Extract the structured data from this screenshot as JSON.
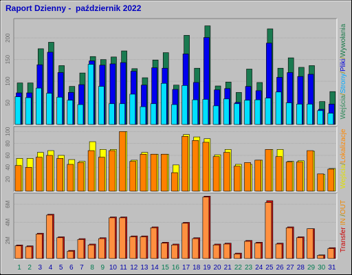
{
  "title": "Raport Dzienny -  październik 2022",
  "legend": {
    "top": [
      {
        "text": "Wejścia",
        "color": "#2f8a5a"
      },
      {
        "text": "/",
        "color": "#888800"
      },
      {
        "text": "Strony",
        "color": "#00aaff"
      },
      {
        "text": "/",
        "color": "#888800"
      },
      {
        "text": "Pliki",
        "color": "#0000dd"
      },
      {
        "text": "/",
        "color": "#888800"
      },
      {
        "text": "Wywołania",
        "color": "#1a7a4a"
      }
    ],
    "middle": [
      {
        "text": "Wejścia",
        "color": "#e0e000"
      },
      {
        "text": "/",
        "color": "#888800"
      },
      {
        "text": "Lokalizacje",
        "color": "#ff8800"
      }
    ],
    "bottom": [
      {
        "text": "Transfer",
        "color": "#cc0000"
      },
      {
        "text": " IN ",
        "color": "#ee8800"
      },
      {
        "text": "/",
        "color": "#888800"
      },
      {
        "text": "OUT",
        "color": "#ee8800"
      }
    ]
  },
  "colors": {
    "background": "#c0c0c0",
    "hits": "#1a7a50",
    "files": "#0000ee",
    "pages": "#00e0ff",
    "visits": "#ffff00",
    "sites": "#ff8000",
    "kbin": "#d01010",
    "kbout": "#ff9040",
    "weekend_label": "#007a50",
    "weekday_label": "#0000aa"
  },
  "chart_data": [
    {
      "type": "bar",
      "panel": "top",
      "yticks": [
        "50",
        "100",
        "150",
        "200"
      ],
      "ylim": [
        0,
        240
      ],
      "categories": [
        "1",
        "2",
        "3",
        "4",
        "5",
        "6",
        "7",
        "8",
        "9",
        "10",
        "11",
        "12",
        "13",
        "14",
        "15",
        "16",
        "17",
        "18",
        "19",
        "20",
        "21",
        "22",
        "23",
        "24",
        "25",
        "26",
        "27",
        "28",
        "29",
        "30",
        "31"
      ],
      "series": [
        {
          "name": "Wywołania",
          "values": [
            96,
            96,
            175,
            190,
            136,
            88,
            119,
            157,
            150,
            156,
            170,
            129,
            108,
            149,
            166,
            91,
            206,
            130,
            228,
            89,
            98,
            74,
            128,
            97,
            221,
            130,
            154,
            132,
            136,
            53,
            76
          ]
        },
        {
          "name": "Pliki",
          "values": [
            73,
            73,
            138,
            167,
            120,
            74,
            92,
            147,
            137,
            140,
            143,
            123,
            91,
            131,
            130,
            81,
            163,
            97,
            201,
            80,
            83,
            51,
            88,
            78,
            188,
            109,
            120,
            111,
            116,
            35,
            47
          ]
        },
        {
          "name": "Strony",
          "values": [
            64,
            62,
            84,
            72,
            63,
            56,
            46,
            139,
            88,
            48,
            48,
            70,
            41,
            48,
            95,
            46,
            90,
            57,
            58,
            43,
            59,
            48,
            56,
            57,
            61,
            75,
            50,
            47,
            47,
            32,
            26
          ]
        }
      ]
    },
    {
      "type": "bar",
      "panel": "middle",
      "yticks": [
        "20",
        "40",
        "60",
        "80",
        "100"
      ],
      "ylim": [
        0,
        105
      ],
      "categories": [
        "1",
        "2",
        "3",
        "4",
        "5",
        "6",
        "7",
        "8",
        "9",
        "10",
        "11",
        "12",
        "13",
        "14",
        "15",
        "16",
        "17",
        "18",
        "19",
        "20",
        "21",
        "22",
        "23",
        "24",
        "25",
        "26",
        "27",
        "28",
        "29",
        "30",
        "31"
      ],
      "series": [
        {
          "name": "Wejścia",
          "values": [
            55,
            55,
            65,
            68,
            60,
            53,
            50,
            83,
            70,
            70,
            100,
            52,
            65,
            62,
            62,
            44,
            95,
            91,
            88,
            61,
            70,
            45,
            45,
            52,
            70,
            70,
            50,
            51,
            67,
            28,
            38
          ]
        },
        {
          "name": "Lokalizacje",
          "values": [
            43,
            40,
            57,
            60,
            55,
            45,
            48,
            68,
            57,
            68,
            100,
            50,
            62,
            62,
            62,
            31,
            92,
            85,
            82,
            58,
            65,
            42,
            48,
            52,
            70,
            58,
            49,
            49,
            68,
            29,
            37
          ]
        }
      ]
    },
    {
      "type": "bar",
      "panel": "bottom",
      "yticks": [
        "2M",
        "4M",
        "6M"
      ],
      "ylim": [
        0,
        7
      ],
      "categories": [
        "1",
        "2",
        "3",
        "4",
        "5",
        "6",
        "7",
        "8",
        "9",
        "10",
        "11",
        "12",
        "13",
        "14",
        "15",
        "16",
        "17",
        "18",
        "19",
        "20",
        "21",
        "22",
        "23",
        "24",
        "25",
        "26",
        "27",
        "28",
        "29",
        "30",
        "31"
      ],
      "series": [
        {
          "name": "Transfer IN",
          "values": [
            1.5,
            1.4,
            2.8,
            4.9,
            2.4,
            0.9,
            2.2,
            1.6,
            2.3,
            4.6,
            4.6,
            2.5,
            2.5,
            3.5,
            1.8,
            1.6,
            4.0,
            2.3,
            6.9,
            1.6,
            1.7,
            0.6,
            2.0,
            1.8,
            6.4,
            1.7,
            3.5,
            2.4,
            3.3,
            0.4,
            1.2
          ]
        },
        {
          "name": "Transfer OUT",
          "values": [
            1.4,
            1.3,
            2.7,
            4.8,
            2.3,
            0.8,
            2.1,
            1.5,
            2.2,
            4.5,
            4.5,
            2.4,
            2.4,
            3.4,
            1.7,
            1.5,
            3.9,
            2.2,
            6.8,
            1.5,
            1.6,
            0.5,
            1.9,
            1.7,
            6.2,
            1.6,
            3.4,
            2.3,
            3.3,
            0.35,
            1.1
          ]
        }
      ]
    }
  ],
  "weekend_days": [
    1,
    2,
    8,
    9,
    15,
    16,
    22,
    23,
    29,
    30
  ]
}
